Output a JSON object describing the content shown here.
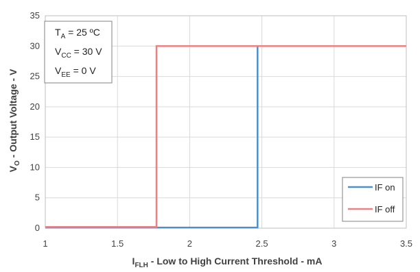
{
  "chart_data": {
    "type": "line",
    "xlabel": {
      "main": "I",
      "sub": "FLH",
      "rest": " - Low to High Current Threshold - mA"
    },
    "ylabel": {
      "main": "V",
      "sub": "O",
      "rest": " - Output Voltage - V"
    },
    "xlim": [
      1,
      3.5
    ],
    "ylim": [
      0,
      35
    ],
    "x_ticks": [
      "1",
      "1.5",
      "2",
      "2.5",
      "3",
      "3.5"
    ],
    "y_ticks": [
      "0",
      "5",
      "10",
      "15",
      "20",
      "25",
      "30",
      "35"
    ],
    "grid": true,
    "legend_position": "bottom-right",
    "series": [
      {
        "name": "IF on",
        "color": "#4f8fc9",
        "x": [
          1,
          2.47,
          2.47,
          3.5
        ],
        "y": [
          0.1,
          0.1,
          30,
          30
        ]
      },
      {
        "name": "IF off",
        "color": "#f08080",
        "x": [
          1,
          1.77,
          1.77,
          3.5
        ],
        "y": [
          0.2,
          0.2,
          30,
          30
        ]
      }
    ],
    "conditions": [
      {
        "main": "T",
        "sub": "A",
        "rest": " = 25 ºC"
      },
      {
        "main": "V",
        "sub": "CC",
        "rest": " = 30 V"
      },
      {
        "main": "V",
        "sub": "EE",
        "rest": " = 0 V"
      }
    ]
  }
}
